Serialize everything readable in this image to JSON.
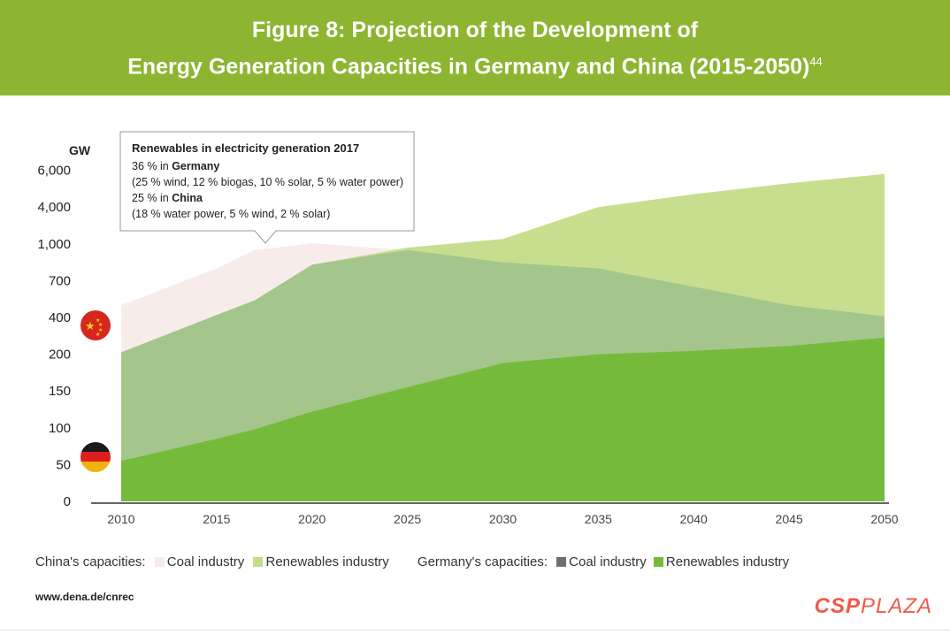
{
  "header": {
    "title_line1": "Figure 8: Projection of the Development of",
    "title_line2": "Energy Generation Capacities in Germany and China (2015-2050)",
    "footnote_ref": "44"
  },
  "callout": {
    "title": "Renewables in electricity generation 2017",
    "germany_share": "36 % in",
    "germany_label": "Germany",
    "germany_detail": "(25 % wind, 12 % biogas, 10 % solar, 5 % water power)",
    "china_share": "25 % in",
    "china_label": "China",
    "china_detail": "(18 % water power, 5 % wind, 2 % solar)"
  },
  "flags": {
    "china": "China flag",
    "germany": "Germany flag"
  },
  "legend": {
    "china_group": "China's capacities:",
    "china_coal": "Coal industry",
    "china_renew": "Renewables industry",
    "germany_group": "Germany's capacities:",
    "germany_coal": "Coal industry",
    "germany_renew": "Renewables industry"
  },
  "source": "www.dena.de/cnrec",
  "brand": {
    "bold": "CSP",
    "thin": "PLAZA"
  },
  "colors": {
    "banner": "#8db531",
    "china_coal": "#f8ecea",
    "china_renew": "#c4dc88",
    "germany_coal": "#6e6e72",
    "germany_renew": "#76ba3b",
    "overlap": "#a4c68c"
  },
  "chart_data": {
    "type": "area",
    "title": "",
    "ylabel": "GW",
    "xlabel": "",
    "x": [
      2010,
      2015,
      2017,
      2020,
      2025,
      2030,
      2035,
      2040,
      2045,
      2050
    ],
    "x_ticks": [
      "2010",
      "2015",
      "2020",
      "2025",
      "2030",
      "2035",
      "2040",
      "2045",
      "2050"
    ],
    "y_ticks": [
      "0",
      "50",
      "100",
      "150",
      "200",
      "400",
      "700",
      "1,000",
      "4,000",
      "6,000"
    ],
    "y_scale": "non-linear (ticks at listed values, evenly spaced)",
    "series": [
      {
        "name": "China coal industry",
        "values": [
          500,
          800,
          950,
          1050,
          950,
          850,
          800,
          650,
          500,
          410
        ]
      },
      {
        "name": "China renewables industry",
        "values": [
          210,
          420,
          540,
          830,
          970,
          1400,
          4000,
          4700,
          5300,
          5800
        ]
      },
      {
        "name": "Germany coal industry",
        "values": [
          55,
          40,
          38,
          36,
          30,
          22,
          8,
          0,
          0,
          0
        ]
      },
      {
        "name": "Germany renewables industry",
        "values": [
          55,
          85,
          98,
          122,
          155,
          188,
          200,
          218,
          245,
          290
        ]
      }
    ]
  }
}
